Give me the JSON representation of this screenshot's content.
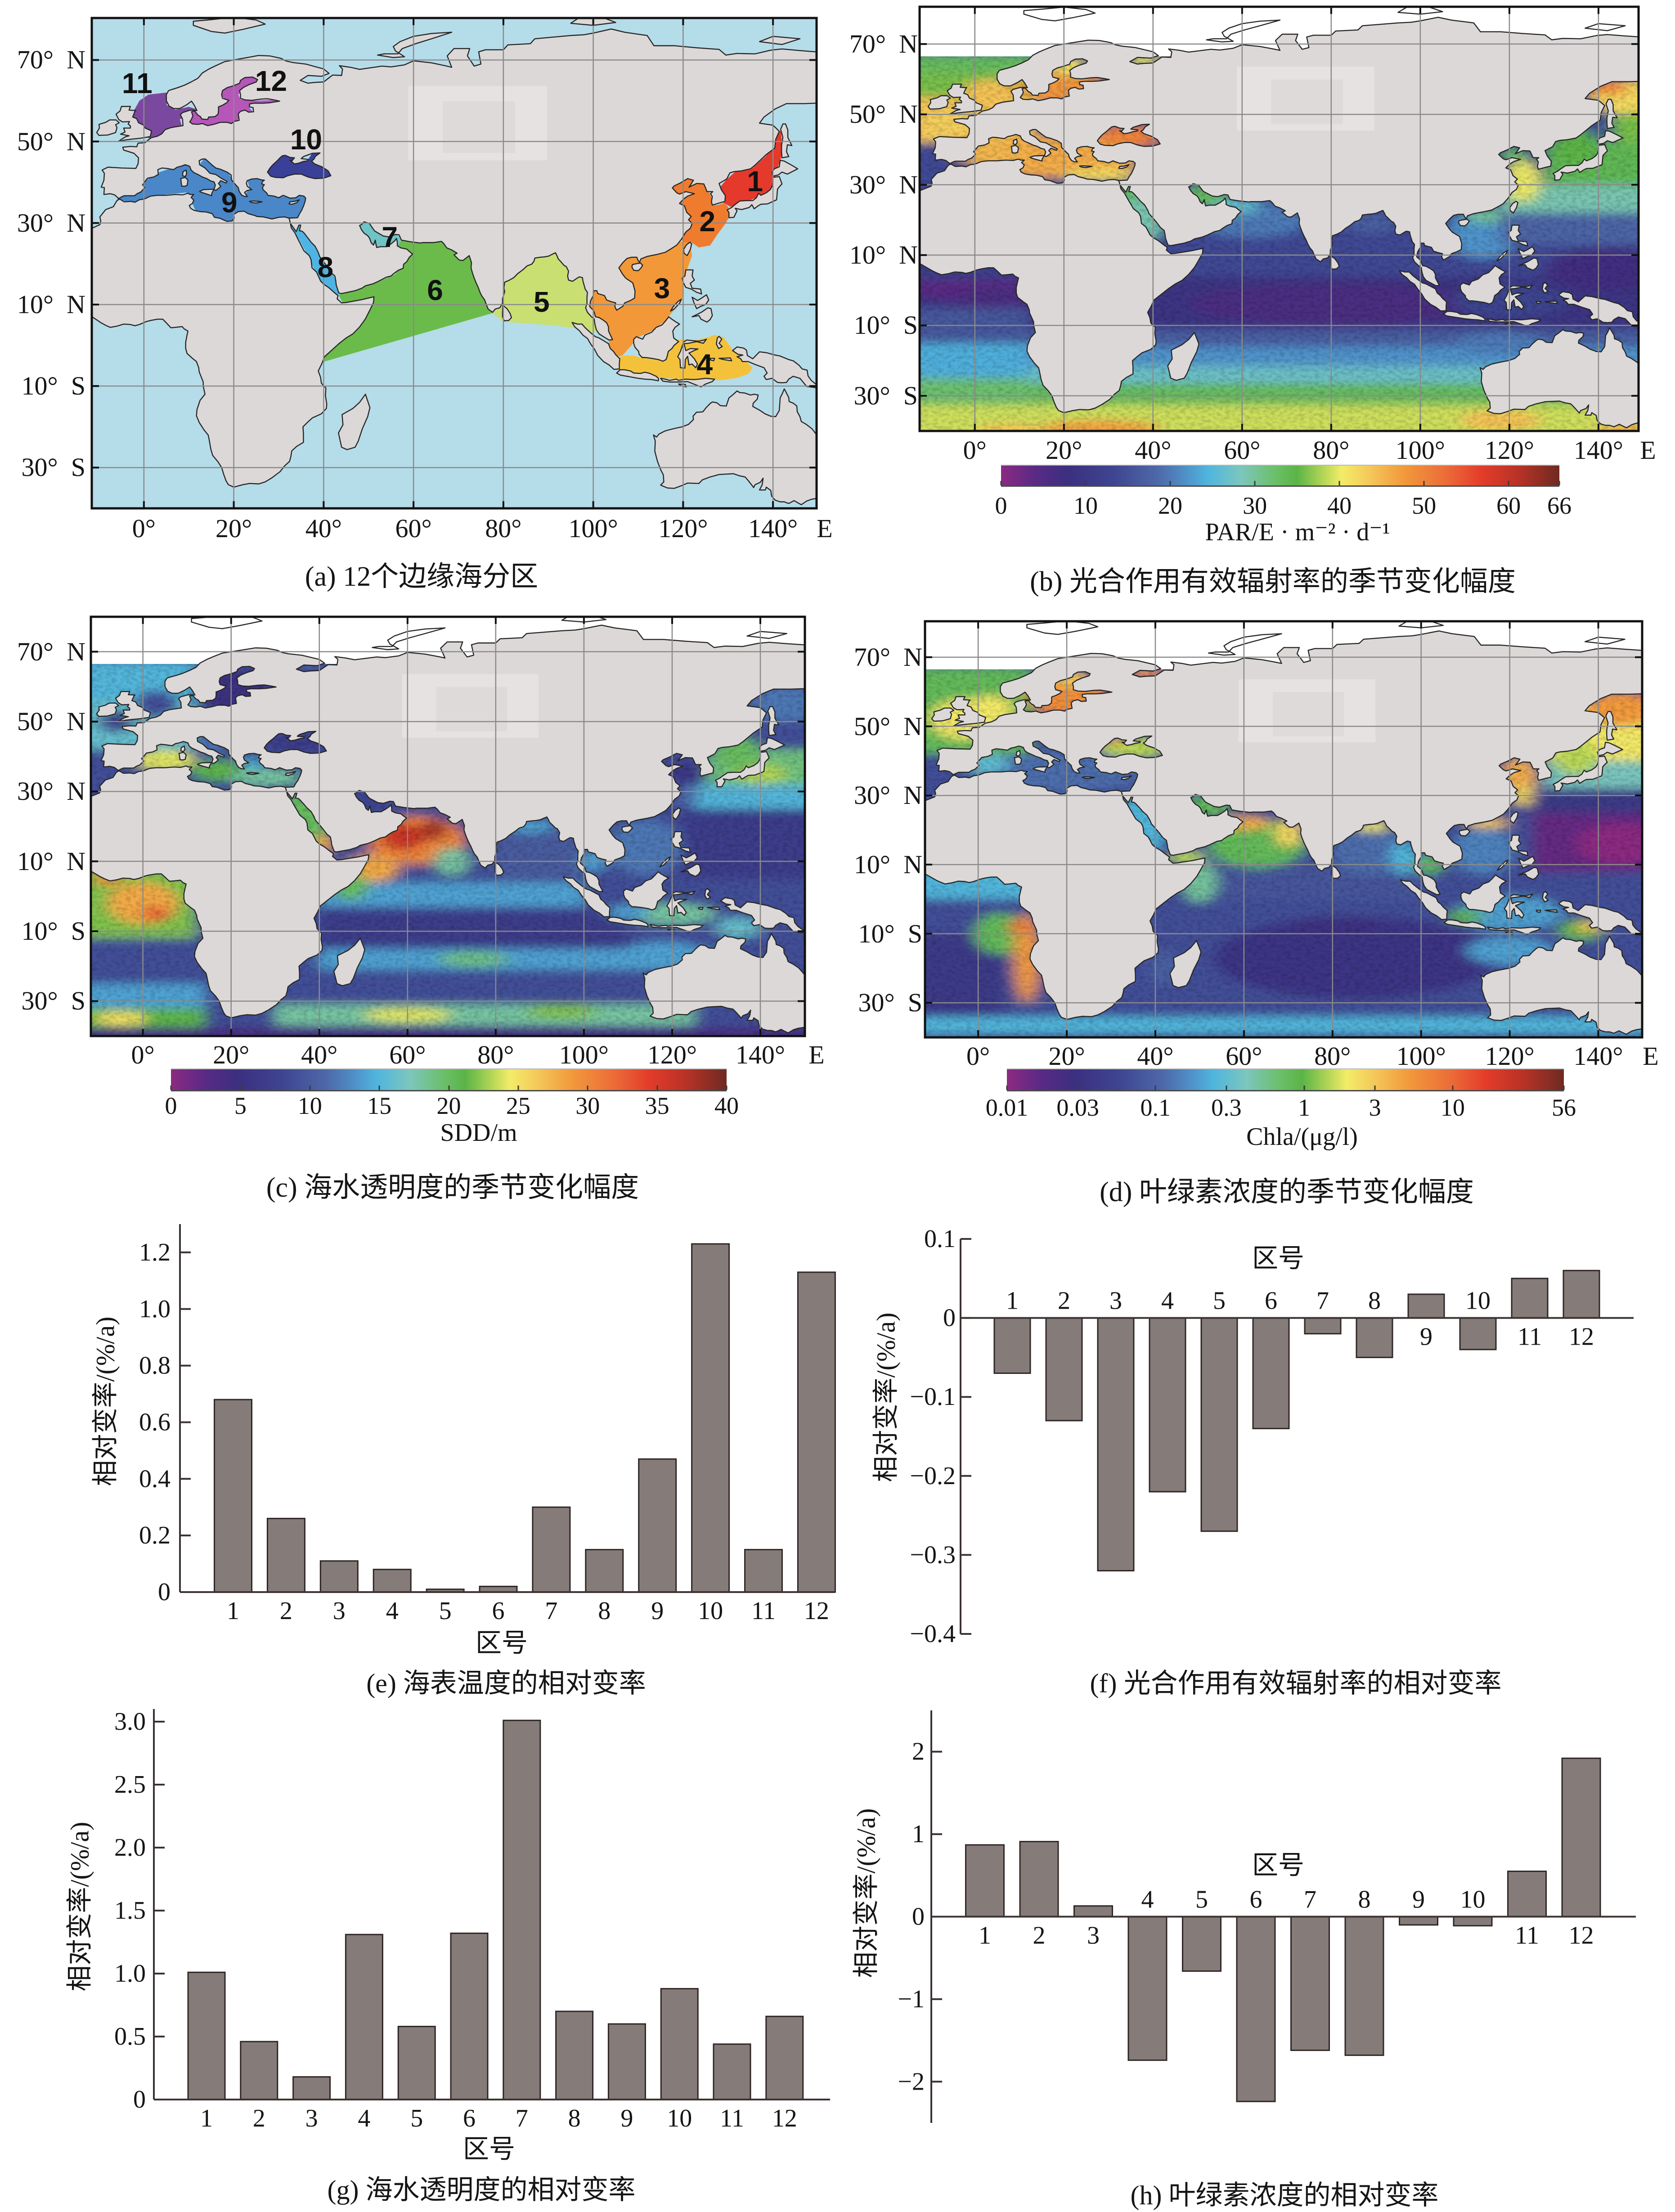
{
  "map_axes": {
    "lat_labels": [
      {
        "lat": 70,
        "text": "70°  N"
      },
      {
        "lat": 50,
        "text": "50°  N"
      },
      {
        "lat": 30,
        "text": "30°  N"
      },
      {
        "lat": 10,
        "text": "10°  N"
      },
      {
        "lat": -10,
        "text": "10°  S"
      },
      {
        "lat": -30,
        "text": "30°  S"
      }
    ],
    "lon_labels": [
      {
        "lon": 0,
        "text": "0°"
      },
      {
        "lon": 20,
        "text": "20°"
      },
      {
        "lon": 40,
        "text": "40°"
      },
      {
        "lon": 60,
        "text": "60°"
      },
      {
        "lon": 80,
        "text": "80°"
      },
      {
        "lon": 100,
        "text": "100°"
      },
      {
        "lon": 120,
        "text": "120°"
      },
      {
        "lon": 140,
        "text": "140°"
      }
    ],
    "lon_unit": "E",
    "grid_lon": [
      0,
      20,
      40,
      60,
      80,
      100,
      120,
      140
    ],
    "grid_lat": [
      70,
      50,
      30,
      10,
      -10,
      -30
    ]
  },
  "colormap": {
    "stops": [
      [
        0.0,
        "#8c2a82"
      ],
      [
        0.06,
        "#5a2a85"
      ],
      [
        0.12,
        "#3c2f80"
      ],
      [
        0.2,
        "#3e4590"
      ],
      [
        0.28,
        "#4e68a8"
      ],
      [
        0.33,
        "#4f90c8"
      ],
      [
        0.37,
        "#4fb5de"
      ],
      [
        0.43,
        "#7cc6bd"
      ],
      [
        0.49,
        "#6cbf6a"
      ],
      [
        0.53,
        "#5bb447"
      ],
      [
        0.58,
        "#b9d857"
      ],
      [
        0.61,
        "#f3ec68"
      ],
      [
        0.66,
        "#f4c85a"
      ],
      [
        0.72,
        "#f29a3c"
      ],
      [
        0.8,
        "#eb6a38"
      ],
      [
        0.86,
        "#e43c2a"
      ],
      [
        0.93,
        "#b53226"
      ],
      [
        1.0,
        "#6e2a22"
      ]
    ]
  },
  "maps": {
    "a": {
      "caption": "(a) 12个边缘海分区",
      "extent": {
        "lon": [
          -11.6,
          149.7
        ],
        "lat": [
          -40,
          80.3
        ]
      },
      "ocean_color": "#b5dce9",
      "land_color": "#dcd8d7",
      "regions": [
        {
          "id": "1",
          "label": "1",
          "color": "#e5392c",
          "label_lon": 136.0,
          "label_lat": 40.2
        },
        {
          "id": "2",
          "label": "2",
          "color": "#ef7b2e",
          "label_lon": 125.4,
          "label_lat": 30.4
        },
        {
          "id": "3",
          "label": "3",
          "color": "#f39838",
          "label_lon": 115.3,
          "label_lat": 14.0
        },
        {
          "id": "4",
          "label": "4",
          "color": "#f4c23a",
          "label_lon": 124.8,
          "label_lat": -4.7
        },
        {
          "id": "5",
          "label": "5",
          "color": "#c9df71",
          "label_lon": 88.5,
          "label_lat": 10.7
        },
        {
          "id": "6",
          "label": "6",
          "color": "#6bbb4b",
          "label_lon": 64.8,
          "label_lat": 13.5
        },
        {
          "id": "7",
          "label": "7",
          "color": "#6fc4c6",
          "label_lon": 54.7,
          "label_lat": 26.6
        },
        {
          "id": "8",
          "label": "8",
          "color": "#4fb4e4",
          "label_lon": 40.4,
          "label_lat": 19.2
        },
        {
          "id": "9",
          "label": "9",
          "color": "#4a87c8",
          "label_lon": 19.0,
          "label_lat": 35.0
        },
        {
          "id": "10",
          "label": "10",
          "color": "#3a3f98",
          "label_lon": 36.1,
          "label_lat": 50.5
        },
        {
          "id": "11",
          "label": "11",
          "color": "#7b48a0",
          "label_lon": -1.5,
          "label_lat": 64.3
        },
        {
          "id": "12",
          "label": "12",
          "color": "#b556b8",
          "label_lon": 28.3,
          "label_lat": 64.8
        }
      ]
    },
    "b": {
      "caption": "(b) 光合作用有效辐射率的季节变化幅度",
      "extent": {
        "lon": [
          -12.4,
          149.0
        ],
        "lat": [
          -40,
          80.6
        ]
      },
      "land_color": "#dcd8d7",
      "no_data_color": "#ffffff",
      "no_data_north_of_lat": 66.5,
      "colorbar": {
        "label": "PAR/E · m⁻² · d⁻¹",
        "scale": "linear",
        "min": 0,
        "max": 66,
        "ticks": [
          {
            "value": 0,
            "text": "0"
          },
          {
            "value": 10,
            "text": "10"
          },
          {
            "value": 20,
            "text": "20"
          },
          {
            "value": 30,
            "text": "30"
          },
          {
            "value": 40,
            "text": "40"
          },
          {
            "value": 50,
            "text": "50"
          },
          {
            "value": 60,
            "text": "60"
          },
          {
            "value": 66,
            "text": "66"
          }
        ]
      }
    },
    "c": {
      "caption": "(c) 海水透明度的季节变化幅度",
      "extent": {
        "lon": [
          -11.8,
          150.1
        ],
        "lat": [
          -40,
          80.0
        ]
      },
      "land_color": "#dcd8d7",
      "no_data_color": "#ffffff",
      "no_data_north_of_lat": 66.5,
      "colorbar": {
        "label": "SDD/m",
        "scale": "linear",
        "min": 0,
        "max": 40,
        "ticks": [
          {
            "value": 0,
            "text": "0"
          },
          {
            "value": 5,
            "text": "5"
          },
          {
            "value": 10,
            "text": "10"
          },
          {
            "value": 15,
            "text": "15"
          },
          {
            "value": 20,
            "text": "20"
          },
          {
            "value": 25,
            "text": "25"
          },
          {
            "value": 30,
            "text": "30"
          },
          {
            "value": 35,
            "text": "35"
          },
          {
            "value": 40,
            "text": "40"
          }
        ]
      }
    },
    "d": {
      "caption": "(d) 叶绿素浓度的季节变化幅度",
      "extent": {
        "lon": [
          -12.0,
          149.9
        ],
        "lat": [
          -40,
          80.4
        ]
      },
      "land_color": "#dcd8d7",
      "no_data_color": "#ffffff",
      "no_data_north_of_lat": 66.5,
      "colorbar": {
        "label": "Chla/(μg/l)",
        "scale": "log",
        "min": 0.01,
        "max": 56,
        "ticks": [
          {
            "value": 0.01,
            "text": "0.01"
          },
          {
            "value": 0.03,
            "text": "0.03"
          },
          {
            "value": 0.1,
            "text": "0.1"
          },
          {
            "value": 0.3,
            "text": "0.3"
          },
          {
            "value": 1,
            "text": "1"
          },
          {
            "value": 3,
            "text": "3"
          },
          {
            "value": 10,
            "text": "10"
          },
          {
            "value": 56,
            "text": "56"
          }
        ]
      }
    }
  },
  "chart_data": [
    {
      "panel": "e",
      "type": "bar",
      "title": "(e) 海表温度的相对变率",
      "categories": [
        "1",
        "2",
        "3",
        "4",
        "5",
        "6",
        "7",
        "8",
        "9",
        "10",
        "11",
        "12"
      ],
      "values": [
        0.68,
        0.26,
        0.11,
        0.08,
        0.01,
        0.02,
        0.3,
        0.15,
        0.47,
        1.23,
        0.15,
        1.13
      ],
      "xlabel": "区号",
      "ylabel": "相对变率/(%/a)",
      "ylim": [
        0,
        1.3
      ],
      "yticks": [
        0,
        0.2,
        0.4,
        0.6,
        0.8,
        1.0,
        1.2
      ],
      "ytick_labels": [
        "0",
        "0.2",
        "0.4",
        "0.6",
        "0.8",
        "1.0",
        "1.2"
      ],
      "xlabel_placement": "bottom",
      "grid": false
    },
    {
      "panel": "f",
      "type": "bar",
      "title": "(f) 光合作用有效辐射率的相对变率",
      "categories": [
        "1",
        "2",
        "3",
        "4",
        "5",
        "6",
        "7",
        "8",
        "9",
        "10",
        "11",
        "12"
      ],
      "values": [
        -0.07,
        -0.13,
        -0.32,
        -0.22,
        -0.27,
        -0.14,
        -0.02,
        -0.05,
        0.03,
        -0.04,
        0.05,
        0.06
      ],
      "xlabel": "区号",
      "ylabel": "相对变率/(%/a)",
      "ylim": [
        -0.4,
        0.1
      ],
      "yticks": [
        0.1,
        0,
        -0.1,
        -0.2,
        -0.3,
        -0.4
      ],
      "ytick_labels": [
        "0.1",
        "0",
        "−0.1",
        "−0.2",
        "−0.3",
        "−0.4"
      ],
      "xlabel_placement": "top",
      "grid": false
    },
    {
      "panel": "g",
      "type": "bar",
      "title": "(g) 海水透明度的相对变率",
      "categories": [
        "1",
        "2",
        "3",
        "4",
        "5",
        "6",
        "7",
        "8",
        "9",
        "10",
        "11",
        "12"
      ],
      "values": [
        1.01,
        0.46,
        0.18,
        1.31,
        0.58,
        1.32,
        3.01,
        0.7,
        0.6,
        0.88,
        0.44,
        0.66
      ],
      "xlabel": "区号",
      "ylabel": "相对变率/(%/a)",
      "ylim": [
        0,
        3.1
      ],
      "yticks": [
        0,
        0.5,
        1.0,
        1.5,
        2.0,
        2.5,
        3.0
      ],
      "ytick_labels": [
        "0",
        "0.5",
        "1.0",
        "1.5",
        "2.0",
        "2.5",
        "3.0"
      ],
      "xlabel_placement": "bottom",
      "grid": false
    },
    {
      "panel": "h",
      "type": "bar",
      "title": "(h) 叶绿素浓度的相对变率",
      "categories": [
        "1",
        "2",
        "3",
        "4",
        "5",
        "6",
        "7",
        "8",
        "9",
        "10",
        "11",
        "12"
      ],
      "values": [
        0.87,
        0.91,
        0.13,
        -1.74,
        -0.66,
        -2.24,
        -1.62,
        -1.68,
        -0.1,
        -0.11,
        0.55,
        1.92
      ],
      "xlabel": "区号",
      "ylabel": "相对变率/(%/a)",
      "ylim": [
        -2.5,
        2.5
      ],
      "yticks": [
        2,
        1,
        0,
        -1,
        -2
      ],
      "ytick_labels": [
        "2",
        "1",
        "0",
        "−1",
        "−2"
      ],
      "xlabel_placement": "center",
      "grid": false
    }
  ]
}
